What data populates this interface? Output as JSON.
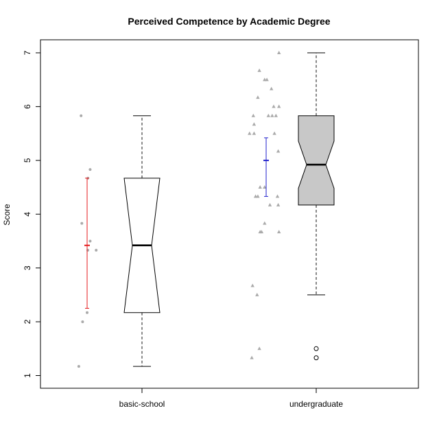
{
  "chart_data": {
    "type": "boxplot",
    "title": "Perceived Competence by Academic Degree",
    "xlabel": "",
    "ylabel": "Score",
    "ylim": [
      0.75,
      7.25
    ],
    "yticks": [
      1,
      2,
      3,
      4,
      5,
      6,
      7
    ],
    "categories": [
      "basic-school",
      "undergraduate"
    ],
    "series": [
      {
        "name": "basic-school",
        "box": {
          "min": 1.17,
          "q1": 2.17,
          "median": 3.42,
          "q3": 4.67,
          "max": 5.83,
          "notch_low": 2.17,
          "notch_high": 4.67
        },
        "box_fill": "#ffffff",
        "outliers": [],
        "mean": 3.42,
        "ci": [
          2.25,
          4.67
        ],
        "ci_color": "#e41a1c",
        "points_marker": "circle",
        "points": [
          {
            "y": 5.83,
            "jitter": -0.4
          },
          {
            "y": 4.83,
            "jitter": 0.2
          },
          {
            "y": 4.67,
            "jitter": 0.05
          },
          {
            "y": 3.83,
            "jitter": -0.35
          },
          {
            "y": 3.5,
            "jitter": 0.2
          },
          {
            "y": 3.33,
            "jitter": 0.05
          },
          {
            "y": 3.33,
            "jitter": 0.6
          },
          {
            "y": 2.17,
            "jitter": 0.0
          },
          {
            "y": 2.0,
            "jitter": -0.3
          },
          {
            "y": 1.17,
            "jitter": -0.55
          }
        ]
      },
      {
        "name": "undergraduate",
        "box": {
          "min": 2.5,
          "q1": 4.17,
          "median": 4.92,
          "q3": 5.83,
          "max": 7.0,
          "notch_low": 4.48,
          "notch_high": 5.36
        },
        "box_fill": "#c8c8c8",
        "outliers": [
          1.5,
          1.33
        ],
        "mean": 5.0,
        "ci": [
          4.33,
          5.42
        ],
        "ci_color": "#2222cc",
        "points_marker": "triangle",
        "points": [
          {
            "y": 7.0,
            "jitter": 0.85
          },
          {
            "y": 6.67,
            "jitter": -0.45
          },
          {
            "y": 6.5,
            "jitter": -0.1
          },
          {
            "y": 6.5,
            "jitter": 0.05
          },
          {
            "y": 6.33,
            "jitter": 0.35
          },
          {
            "y": 6.17,
            "jitter": -0.55
          },
          {
            "y": 6.0,
            "jitter": 0.5
          },
          {
            "y": 6.0,
            "jitter": 0.85
          },
          {
            "y": 5.83,
            "jitter": -0.85
          },
          {
            "y": 5.83,
            "jitter": 0.15
          },
          {
            "y": 5.83,
            "jitter": 0.4
          },
          {
            "y": 5.83,
            "jitter": 0.65
          },
          {
            "y": 5.67,
            "jitter": -0.8
          },
          {
            "y": 5.5,
            "jitter": -1.1
          },
          {
            "y": 5.5,
            "jitter": -0.8
          },
          {
            "y": 5.5,
            "jitter": 0.55
          },
          {
            "y": 5.17,
            "jitter": 0.8
          },
          {
            "y": 4.5,
            "jitter": -0.4
          },
          {
            "y": 4.5,
            "jitter": -0.1
          },
          {
            "y": 4.33,
            "jitter": -0.7
          },
          {
            "y": 4.33,
            "jitter": -0.55
          },
          {
            "y": 4.33,
            "jitter": 0.75
          },
          {
            "y": 4.17,
            "jitter": 0.25
          },
          {
            "y": 4.17,
            "jitter": 0.8
          },
          {
            "y": 3.83,
            "jitter": -0.1
          },
          {
            "y": 3.67,
            "jitter": -0.4
          },
          {
            "y": 3.67,
            "jitter": -0.3
          },
          {
            "y": 3.67,
            "jitter": 0.85
          },
          {
            "y": 2.67,
            "jitter": -0.9
          },
          {
            "y": 2.5,
            "jitter": -0.6
          },
          {
            "y": 1.5,
            "jitter": -0.45
          },
          {
            "y": 1.33,
            "jitter": -0.95
          }
        ]
      }
    ]
  }
}
